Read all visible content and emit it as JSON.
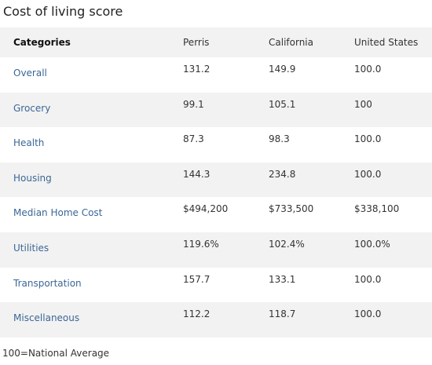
{
  "header": {
    "title": "Cost of living score"
  },
  "table": {
    "columns": [
      "Categories",
      "Perris",
      "California",
      "United States"
    ],
    "rows": [
      [
        "Overall",
        "131.2",
        "149.9",
        "100.0"
      ],
      [
        "Grocery",
        "99.1",
        "105.1",
        "100"
      ],
      [
        "Health",
        "87.3",
        "98.3",
        "100.0"
      ],
      [
        "Housing",
        "144.3",
        "234.8",
        "100.0"
      ],
      [
        "Median Home Cost",
        "$494,200",
        "$733,500",
        "$338,100"
      ],
      [
        "Utilities",
        "119.6%",
        "102.4%",
        "100.0%"
      ],
      [
        "Transportation",
        "157.7",
        "133.1",
        "100.0"
      ],
      [
        "Miscellaneous",
        "112.2",
        "118.7",
        "100.0"
      ]
    ]
  },
  "footer": {
    "note": "100=National Average"
  }
}
